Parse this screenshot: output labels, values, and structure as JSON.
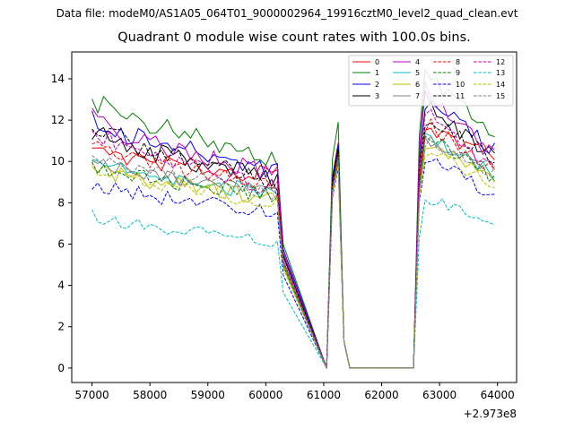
{
  "suptitle": "Data file: modeM0/AS1A05_064T01_9000002964_19916cztM0_level2_quad_clean.evt",
  "chart_data": {
    "type": "line",
    "title": "Quadrant 0 module wise count rates with 100.0s bins.",
    "xlabel": "",
    "ylabel": "",
    "x_offset_label": "+2.973e8",
    "x_offset": 297300000,
    "xlim": [
      56650,
      64330
    ],
    "ylim": [
      -0.7,
      15.3
    ],
    "xticks": [
      57000,
      58000,
      59000,
      60000,
      61000,
      62000,
      63000,
      64000
    ],
    "xtick_labels": [
      "57000",
      "58000",
      "59000",
      "60000",
      "61000",
      "62000",
      "63000",
      "64000"
    ],
    "yticks": [
      0,
      2,
      4,
      6,
      8,
      10,
      12,
      14
    ],
    "ytick_labels": [
      "0",
      "2",
      "4",
      "6",
      "8",
      "10",
      "12",
      "14"
    ],
    "grid": false,
    "legend": {
      "placement": "top-right",
      "columns": 4
    },
    "gaps": [
      [
        60350,
        61050
      ],
      [
        61450,
        62550
      ]
    ],
    "segments": [
      {
        "start": 57000,
        "end": 60350,
        "step": 100
      },
      {
        "start": 61050,
        "end": 61450,
        "step": 100
      },
      {
        "start": 62550,
        "end": 64000,
        "step": 100
      }
    ],
    "series": [
      {
        "name": "0",
        "color": "#ff0000",
        "dash": "solid",
        "levels": [
          10.5,
          10.9,
          9.3,
          11.6
        ],
        "peak_x": 62800
      },
      {
        "name": "1",
        "color": "#008000",
        "dash": "solid",
        "levels": [
          13.1,
          11.9,
          10.0,
          14.4
        ],
        "peak_x": 62750
      },
      {
        "name": "2",
        "color": "#0000ff",
        "dash": "solid",
        "levels": [
          12.0,
          10.8,
          9.6,
          13.3
        ],
        "peak_x": 62750
      },
      {
        "name": "3",
        "color": "#000000",
        "dash": "solid",
        "levels": [
          11.5,
          10.6,
          9.1,
          12.7
        ],
        "peak_x": 62800
      },
      {
        "name": "4",
        "color": "#bf00bf",
        "dash": "solid",
        "levels": [
          12.1,
          10.4,
          9.3,
          13.5
        ],
        "peak_x": 62750
      },
      {
        "name": "5",
        "color": "#00bfbf",
        "dash": "solid",
        "levels": [
          10.2,
          10.2,
          8.4,
          11.2
        ],
        "peak_x": 62800
      },
      {
        "name": "6",
        "color": "#bfbf00",
        "dash": "solid",
        "levels": [
          9.7,
          10.4,
          8.2,
          10.9
        ],
        "peak_x": 62800
      },
      {
        "name": "7",
        "color": "#808080",
        "dash": "solid",
        "levels": [
          10.0,
          10.1,
          8.7,
          11.0
        ],
        "peak_x": 62800
      },
      {
        "name": "8",
        "color": "#ff0000",
        "dash": "dashed",
        "levels": [
          11.0,
          10.3,
          8.7,
          11.8
        ],
        "peak_x": 62800
      },
      {
        "name": "9",
        "color": "#008000",
        "dash": "dashed",
        "levels": [
          9.8,
          10.0,
          8.3,
          11.2
        ],
        "peak_x": 62800
      },
      {
        "name": "10",
        "color": "#0000ff",
        "dash": "dashed",
        "levels": [
          9.0,
          9.7,
          7.5,
          10.3
        ],
        "peak_x": 62800
      },
      {
        "name": "11",
        "color": "#000000",
        "dash": "dashed",
        "levels": [
          11.8,
          10.5,
          9.0,
          12.2
        ],
        "peak_x": 62800
      },
      {
        "name": "12",
        "color": "#bf00bf",
        "dash": "dashed",
        "levels": [
          11.6,
          10.0,
          8.6,
          12.3
        ],
        "peak_x": 62800
      },
      {
        "name": "13",
        "color": "#00bfbf",
        "dash": "dashed",
        "levels": [
          7.4,
          10.1,
          6.1,
          8.1
        ],
        "peak_x": 62900
      },
      {
        "name": "14",
        "color": "#bfbf00",
        "dash": "dashed",
        "levels": [
          9.8,
          9.8,
          8.0,
          10.5
        ],
        "peak_x": 62800
      },
      {
        "name": "15",
        "color": "#808080",
        "dash": "dashed",
        "levels": [
          10.3,
          10.1,
          8.5,
          11.0
        ],
        "peak_x": 62800
      }
    ]
  }
}
